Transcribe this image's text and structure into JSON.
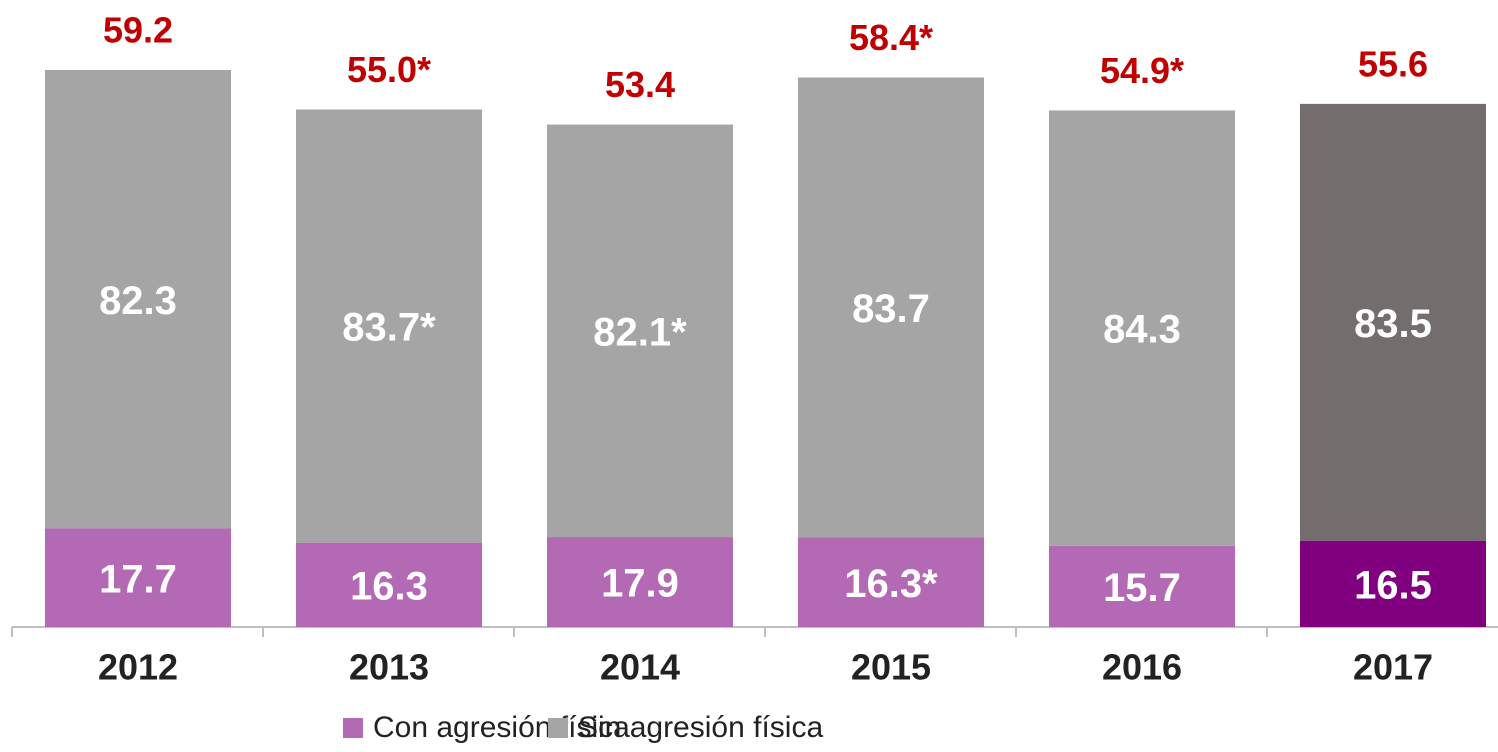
{
  "chart_data": {
    "type": "bar",
    "stacked": true,
    "categories": [
      "2012",
      "2013",
      "2014",
      "2015",
      "2016",
      "2017"
    ],
    "totals": {
      "color": "#c00000",
      "values": [
        59.2,
        55.0,
        53.4,
        58.4,
        54.9,
        55.6
      ],
      "value_labels": [
        "59.2",
        "55.0*",
        "53.4",
        "58.4*",
        "54.9*",
        "55.6"
      ]
    },
    "series": [
      {
        "name": "Con agresión física",
        "color": "#b469b4",
        "colors": [
          "#b469b4",
          "#b469b4",
          "#b469b4",
          "#b469b4",
          "#b469b4",
          "#800080"
        ],
        "values": [
          17.7,
          16.3,
          17.9,
          16.3,
          15.7,
          16.5
        ],
        "value_labels": [
          "17.7",
          "16.3",
          "17.9",
          "16.3*",
          "15.7",
          "16.5"
        ]
      },
      {
        "name": "Sin agresión física",
        "color": "#a6a5a5",
        "colors": [
          "#a6a5a5",
          "#a6a5a5",
          "#a6a5a5",
          "#a6a5a5",
          "#a6a5a5",
          "#736e6d"
        ],
        "values": [
          82.3,
          83.7,
          82.1,
          83.7,
          84.3,
          83.5
        ],
        "value_labels": [
          "82.3",
          "83.7*",
          "82.1*",
          "83.7",
          "84.3",
          "83.5"
        ]
      }
    ]
  }
}
